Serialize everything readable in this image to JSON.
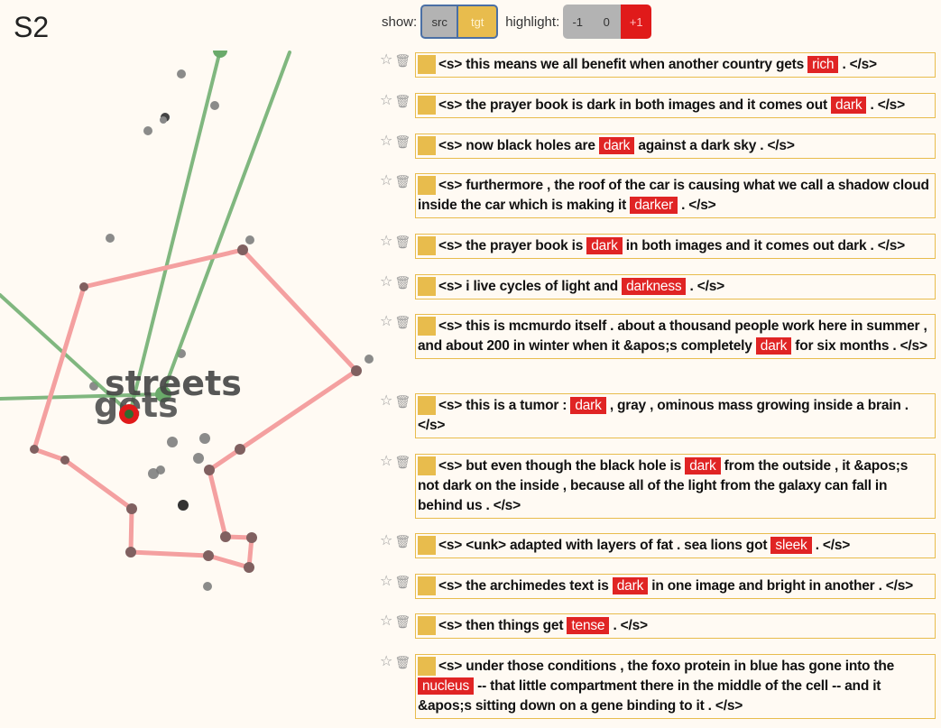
{
  "title": "S2",
  "controls": {
    "show_label": "show:",
    "src_label": "src",
    "tgt_label": "tgt",
    "highlight_label": "highlight:",
    "minus_label": "-1",
    "zero_label": "0",
    "plus_label": "+1"
  },
  "viz": {
    "label_streets": "streets",
    "label_gets": "gets",
    "colors": {
      "red_line": "#f4a0a0",
      "green_line": "#6aaa6a",
      "highlight": "#e01a1a"
    }
  },
  "icons": {
    "star": "star-icon",
    "trash": "trash-icon"
  },
  "sentences": [
    {
      "before": "<s> this means we all benefit when another country gets",
      "word": "rich",
      "after": ". </s>"
    },
    {
      "before": "<s> the prayer book is dark in both images and it comes out",
      "word": "dark",
      "after": ". </s>"
    },
    {
      "before": "<s> now black holes are",
      "word": "dark",
      "after": "against a dark sky . </s>"
    },
    {
      "before": "<s> furthermore , the roof of the car is causing what we call a shadow cloud inside the car which is making it",
      "word": "darker",
      "after": ". </s>"
    },
    {
      "before": "<s> the prayer book is",
      "word": "dark",
      "after": "in both images and it comes out dark . </s>"
    },
    {
      "before": "<s> i live cycles of light and",
      "word": "darkness",
      "after": ". </s>"
    },
    {
      "before": "<s> this is mcmurdo itself . about a thousand people work here in summer , and about 200 in winter when it &apos;s completely",
      "word": "dark",
      "after": "for six months . </s>"
    },
    {
      "before": "<s> this is a tumor :",
      "word": "dark",
      "after": ", gray , ominous mass growing inside a brain . </s>"
    },
    {
      "before": "<s> but even though the black hole is",
      "word": "dark",
      "after": "from the outside , it &apos;s not dark on the inside , because all of the light from the galaxy can fall in behind us . </s>"
    },
    {
      "before": "<s> <unk> adapted with layers of fat . sea lions got",
      "word": "sleek",
      "after": ". </s>"
    },
    {
      "before": "<s> the archimedes text is",
      "word": "dark",
      "after": "in one image and bright in another . </s>"
    },
    {
      "before": "<s> then things get",
      "word": "tense",
      "after": ". </s>"
    },
    {
      "before": "<s> under those conditions , the foxo protein in blue has gone into the",
      "word": "nucleus",
      "after": "-- that little compartment there in the middle of the cell -- and it &apos;s sitting down on a gene binding to it . </s>"
    }
  ]
}
